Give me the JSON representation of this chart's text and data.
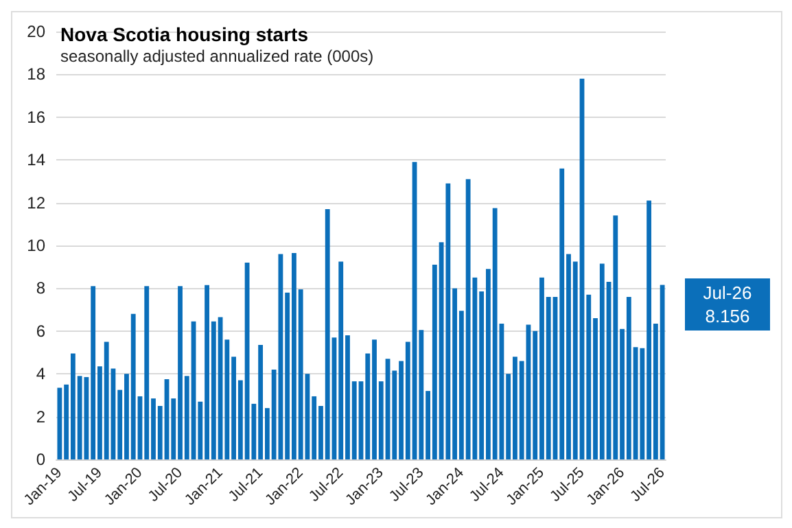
{
  "chart_data": {
    "type": "bar",
    "title": "Nova Scotia housing starts",
    "subtitle": "seasonally adjusted annualized rate (000s)",
    "categories": [
      "Jan-19",
      null,
      null,
      null,
      null,
      null,
      "Jul-19",
      null,
      null,
      null,
      null,
      null,
      "Jan-20",
      null,
      null,
      null,
      null,
      null,
      "Jul-20",
      null,
      null,
      null,
      null,
      null,
      "Jan-21",
      null,
      null,
      null,
      null,
      null,
      "Jul-21",
      null,
      null,
      null,
      null,
      null,
      "Jan-22",
      null,
      null,
      null,
      null,
      null,
      "Jul-22",
      null,
      null,
      null,
      null,
      null,
      "Jan-23",
      null,
      null,
      null,
      null,
      null,
      "Jul-23",
      null,
      null,
      null,
      null,
      null,
      "Jan-24",
      null,
      null,
      null,
      null,
      null,
      "Jul-24",
      null,
      null,
      null,
      null,
      null,
      "Jan-25",
      null,
      null,
      null,
      null,
      null,
      "Jul-25",
      null,
      null,
      null,
      null,
      null,
      "Jan-26",
      null,
      null,
      null,
      null,
      null,
      "Jul-26"
    ],
    "values": [
      3.35,
      3.5,
      4.95,
      3.9,
      3.85,
      8.1,
      4.35,
      5.5,
      4.25,
      3.25,
      4.0,
      6.8,
      2.95,
      8.1,
      2.85,
      2.5,
      3.75,
      2.85,
      8.1,
      3.9,
      6.45,
      2.7,
      8.15,
      6.45,
      6.65,
      5.6,
      4.8,
      3.7,
      9.2,
      2.6,
      5.35,
      2.4,
      4.2,
      9.6,
      7.8,
      9.65,
      7.95,
      4.0,
      2.95,
      2.5,
      11.7,
      5.7,
      9.25,
      5.8,
      3.65,
      3.65,
      4.95,
      5.6,
      3.65,
      4.7,
      4.15,
      4.6,
      5.5,
      13.9,
      6.05,
      3.2,
      9.1,
      10.15,
      12.9,
      8.0,
      6.95,
      13.1,
      8.5,
      7.85,
      8.9,
      11.75,
      6.35,
      4.0,
      4.8,
      4.6,
      6.3,
      6.0,
      8.5,
      7.6,
      7.6,
      13.6,
      9.6,
      9.25,
      17.8,
      7.7,
      6.6,
      9.15,
      8.3,
      11.4,
      6.1,
      7.6,
      5.25,
      5.2,
      12.1,
      6.35,
      8.156
    ],
    "color": "#0b6fba",
    "ylim": [
      0,
      20
    ],
    "yticks": [
      0,
      2,
      4,
      6,
      8,
      10,
      12,
      14,
      16,
      18,
      20
    ],
    "grid": "y",
    "annotations": [
      "Jul-26\n8.156"
    ]
  }
}
